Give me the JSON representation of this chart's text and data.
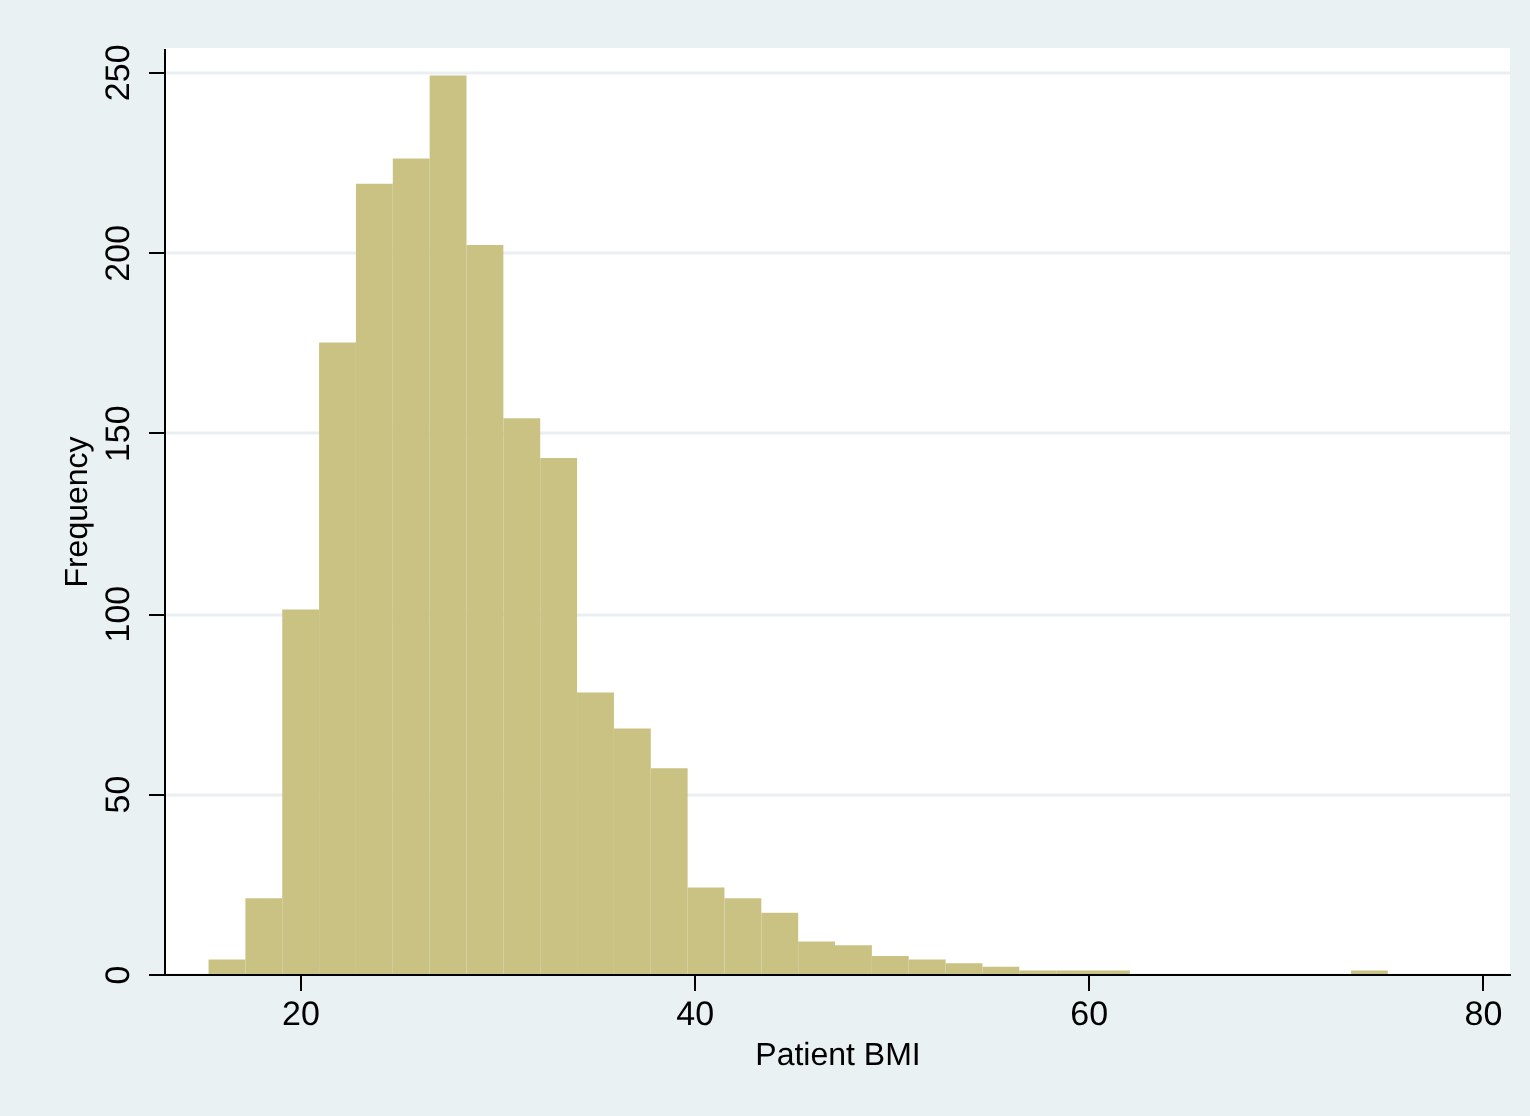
{
  "chart_data": {
    "type": "histogram",
    "xlabel": "Patient BMI",
    "ylabel": "Frequency",
    "bins": [
      15.36,
      17.23,
      19.1,
      20.97,
      22.84,
      24.71,
      26.58,
      28.45,
      30.32,
      32.19,
      34.06,
      35.93,
      37.8,
      39.67,
      41.54,
      43.41,
      45.28,
      47.15,
      49.02,
      50.89,
      52.76,
      54.63,
      56.5,
      58.37,
      60.24,
      62.11,
      63.98,
      65.85,
      67.72,
      69.59,
      71.46,
      73.33,
      75.2
    ],
    "values": [
      4,
      21,
      101,
      175,
      219,
      226,
      249,
      202,
      154,
      143,
      78,
      68,
      57,
      24,
      21,
      17,
      9,
      8,
      5,
      4,
      3,
      2,
      1,
      1,
      1,
      0,
      0,
      0,
      0,
      0,
      0,
      1
    ],
    "color": "#c9c283",
    "xlim": [
      13.1,
      81.4
    ],
    "xticks": [
      20,
      40,
      60,
      80
    ],
    "ylim": [
      0,
      256.6
    ],
    "yticks": [
      0,
      50,
      100,
      150,
      200,
      250
    ],
    "grid": "y"
  }
}
